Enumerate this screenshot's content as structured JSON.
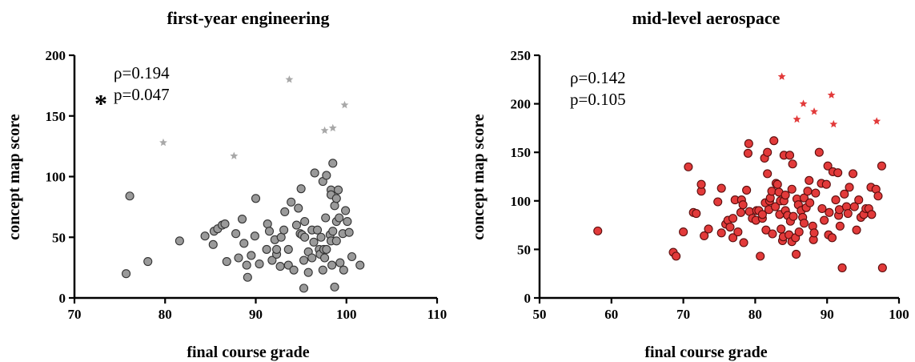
{
  "chart_data": [
    {
      "type": "scatter",
      "title": "first-year engineering",
      "xlabel": "final course grade",
      "ylabel": "concept map score",
      "xlim": [
        70,
        110
      ],
      "ylim": [
        0,
        200
      ],
      "xticks": [
        70,
        80,
        90,
        100,
        110
      ],
      "yticks": [
        0,
        50,
        100,
        150,
        200
      ],
      "annotations": [
        "ρ=0.194",
        "p=0.047"
      ],
      "significance_marker": "*",
      "colors": {
        "points": "#9a9a9a",
        "outliers": "#a8a8a8",
        "stroke": "#333333"
      },
      "points": [
        [
          75.7,
          20
        ],
        [
          76.1,
          84
        ],
        [
          78.1,
          30
        ],
        [
          81.6,
          47
        ],
        [
          84.4,
          51
        ],
        [
          85.3,
          44
        ],
        [
          85.4,
          55
        ],
        [
          85.8,
          57
        ],
        [
          86.3,
          60
        ],
        [
          86.6,
          61
        ],
        [
          86.8,
          30
        ],
        [
          87.8,
          53
        ],
        [
          88.1,
          33
        ],
        [
          88.5,
          65
        ],
        [
          88.7,
          45
        ],
        [
          89.0,
          27
        ],
        [
          89.1,
          17
        ],
        [
          89.5,
          35
        ],
        [
          89.9,
          51
        ],
        [
          90.0,
          82
        ],
        [
          90.4,
          28
        ],
        [
          91.2,
          40
        ],
        [
          91.3,
          61
        ],
        [
          91.5,
          55
        ],
        [
          91.8,
          31
        ],
        [
          92.1,
          48
        ],
        [
          92.3,
          36
        ],
        [
          92.3,
          40
        ],
        [
          92.7,
          26
        ],
        [
          92.8,
          50
        ],
        [
          93.1,
          56
        ],
        [
          93.2,
          71
        ],
        [
          93.6,
          40
        ],
        [
          93.6,
          27
        ],
        [
          93.9,
          79
        ],
        [
          94.2,
          23
        ],
        [
          94.5,
          60
        ],
        [
          94.7,
          74
        ],
        [
          94.9,
          53
        ],
        [
          95.0,
          90
        ],
        [
          95.1,
          52
        ],
        [
          95.3,
          31
        ],
        [
          95.3,
          8
        ],
        [
          95.4,
          63
        ],
        [
          95.4,
          50
        ],
        [
          95.8,
          21
        ],
        [
          95.8,
          38
        ],
        [
          96.2,
          56
        ],
        [
          96.2,
          33
        ],
        [
          96.4,
          46
        ],
        [
          96.5,
          103
        ],
        [
          96.8,
          56
        ],
        [
          97.0,
          40
        ],
        [
          97.1,
          36
        ],
        [
          97.2,
          50
        ],
        [
          97.4,
          23
        ],
        [
          97.4,
          96
        ],
        [
          97.5,
          40
        ],
        [
          97.6,
          33
        ],
        [
          97.7,
          66
        ],
        [
          97.8,
          101
        ],
        [
          97.8,
          40
        ],
        [
          98.2,
          52
        ],
        [
          98.3,
          89
        ],
        [
          98.3,
          85
        ],
        [
          98.3,
          47
        ],
        [
          98.4,
          27
        ],
        [
          98.5,
          111
        ],
        [
          98.5,
          55
        ],
        [
          98.7,
          76
        ],
        [
          98.7,
          9
        ],
        [
          98.9,
          82
        ],
        [
          98.9,
          63
        ],
        [
          98.9,
          47
        ],
        [
          99.1,
          89
        ],
        [
          99.2,
          66
        ],
        [
          99.3,
          29
        ],
        [
          99.6,
          53
        ],
        [
          99.7,
          23
        ],
        [
          99.9,
          72
        ],
        [
          100.1,
          63
        ],
        [
          100.3,
          54
        ],
        [
          100.6,
          34
        ],
        [
          101.5,
          27
        ]
      ],
      "outliers": [
        [
          79.8,
          128
        ],
        [
          87.6,
          117
        ],
        [
          93.7,
          180
        ],
        [
          97.6,
          138
        ],
        [
          98.5,
          140
        ],
        [
          99.8,
          159
        ]
      ]
    },
    {
      "type": "scatter",
      "title": "mid-level aerospace",
      "xlabel": "final course grade",
      "ylabel": "concept map score",
      "xlim": [
        50,
        100
      ],
      "ylim": [
        0,
        250
      ],
      "xticks": [
        50,
        60,
        70,
        80,
        90,
        100
      ],
      "yticks": [
        0,
        50,
        100,
        150,
        200,
        250
      ],
      "annotations": [
        "ρ=0.142",
        "p=0.105"
      ],
      "colors": {
        "points": "#e23a3a",
        "outliers": "#e23a3a",
        "stroke": "#5a0d0d"
      },
      "points": [
        [
          58.1,
          69
        ],
        [
          68.6,
          47
        ],
        [
          69.0,
          43
        ],
        [
          70.0,
          68
        ],
        [
          70.7,
          135
        ],
        [
          71.4,
          88
        ],
        [
          71.8,
          87
        ],
        [
          72.5,
          110
        ],
        [
          72.5,
          117
        ],
        [
          72.9,
          64
        ],
        [
          73.5,
          71
        ],
        [
          74.8,
          99
        ],
        [
          75.3,
          67
        ],
        [
          75.3,
          113
        ],
        [
          75.9,
          76
        ],
        [
          76.2,
          80
        ],
        [
          76.5,
          73
        ],
        [
          76.9,
          62
        ],
        [
          76.9,
          82
        ],
        [
          77.2,
          101
        ],
        [
          77.6,
          68
        ],
        [
          78.0,
          88
        ],
        [
          78.1,
          101
        ],
        [
          78.3,
          96
        ],
        [
          78.4,
          57
        ],
        [
          78.8,
          111
        ],
        [
          79.0,
          149
        ],
        [
          79.1,
          159
        ],
        [
          79.2,
          89
        ],
        [
          79.6,
          82
        ],
        [
          80.1,
          80
        ],
        [
          80.2,
          90
        ],
        [
          80.5,
          90
        ],
        [
          80.7,
          43
        ],
        [
          81.0,
          82
        ],
        [
          81.0,
          86
        ],
        [
          81.3,
          144
        ],
        [
          81.4,
          98
        ],
        [
          81.5,
          70
        ],
        [
          81.7,
          128
        ],
        [
          81.7,
          150
        ],
        [
          81.9,
          91
        ],
        [
          82.0,
          100
        ],
        [
          82.1,
          103
        ],
        [
          82.3,
          110
        ],
        [
          82.4,
          66
        ],
        [
          82.6,
          162
        ],
        [
          82.8,
          94
        ],
        [
          82.9,
          118
        ],
        [
          83.1,
          117
        ],
        [
          83.3,
          109
        ],
        [
          83.4,
          86
        ],
        [
          83.5,
          100
        ],
        [
          83.6,
          71
        ],
        [
          83.8,
          59
        ],
        [
          83.9,
          63
        ],
        [
          84.0,
          147
        ],
        [
          84.0,
          100
        ],
        [
          84.2,
          106
        ],
        [
          84.2,
          90
        ],
        [
          84.5,
          85
        ],
        [
          84.7,
          65
        ],
        [
          84.8,
          147
        ],
        [
          84.9,
          79
        ],
        [
          85.1,
          58
        ],
        [
          85.1,
          112
        ],
        [
          85.2,
          138
        ],
        [
          85.3,
          84
        ],
        [
          85.6,
          62
        ],
        [
          85.7,
          45
        ],
        [
          85.8,
          102
        ],
        [
          86.0,
          96
        ],
        [
          86.1,
          68
        ],
        [
          86.4,
          90
        ],
        [
          86.6,
          83
        ],
        [
          86.8,
          103
        ],
        [
          86.8,
          77
        ],
        [
          87.1,
          93
        ],
        [
          87.3,
          110
        ],
        [
          87.5,
          121
        ],
        [
          87.6,
          98
        ],
        [
          88.0,
          74
        ],
        [
          88.1,
          60
        ],
        [
          88.2,
          67
        ],
        [
          88.4,
          108
        ],
        [
          88.9,
          150
        ],
        [
          89.2,
          118
        ],
        [
          89.3,
          92
        ],
        [
          89.6,
          80
        ],
        [
          89.9,
          117
        ],
        [
          90.1,
          136
        ],
        [
          90.2,
          65
        ],
        [
          90.3,
          88
        ],
        [
          90.7,
          62
        ],
        [
          90.8,
          130
        ],
        [
          91.2,
          101
        ],
        [
          91.5,
          129
        ],
        [
          91.6,
          85
        ],
        [
          91.7,
          91
        ],
        [
          91.8,
          74
        ],
        [
          92.1,
          31
        ],
        [
          92.4,
          107
        ],
        [
          92.7,
          94
        ],
        [
          92.9,
          87
        ],
        [
          93.1,
          114
        ],
        [
          93.6,
          128
        ],
        [
          93.8,
          94
        ],
        [
          94.1,
          70
        ],
        [
          94.4,
          101
        ],
        [
          94.7,
          83
        ],
        [
          95.1,
          86
        ],
        [
          95.4,
          92
        ],
        [
          95.8,
          92
        ],
        [
          96.1,
          114
        ],
        [
          96.2,
          86
        ],
        [
          96.8,
          112
        ],
        [
          97.1,
          105
        ],
        [
          97.6,
          136
        ],
        [
          97.7,
          31
        ]
      ],
      "outliers": [
        [
          83.7,
          228
        ],
        [
          85.8,
          184
        ],
        [
          86.7,
          200
        ],
        [
          88.2,
          192
        ],
        [
          90.6,
          209
        ],
        [
          90.9,
          179
        ],
        [
          96.9,
          182
        ]
      ]
    }
  ]
}
